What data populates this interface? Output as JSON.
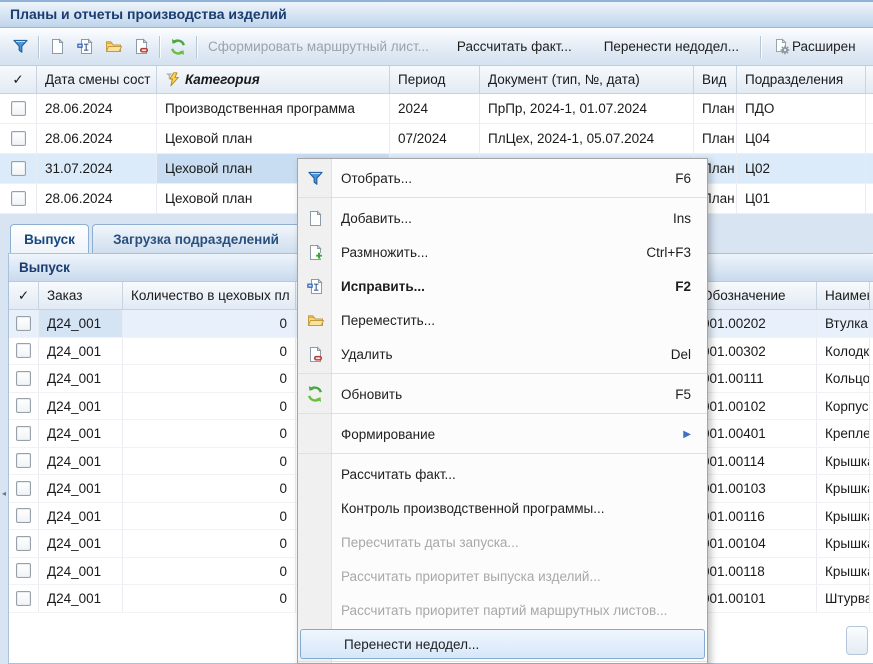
{
  "window": {
    "title": "Планы и отчеты производства изделий"
  },
  "toolbar": {
    "icon_buttons": [
      {
        "name": "filter-button",
        "icon": "filter-icon"
      },
      {
        "name": "add-button",
        "icon": "new-doc-icon"
      },
      {
        "name": "edit-button",
        "icon": "edit-doc-icon"
      },
      {
        "name": "move-button",
        "icon": "move-folder-icon"
      },
      {
        "name": "delete-button",
        "icon": "delete-doc-icon"
      },
      {
        "name": "refresh-button",
        "icon": "refresh-icon"
      }
    ],
    "buttons": {
      "form_route_sheet": "Сформировать маршрутный лист...",
      "calc_fact": "Рассчитать факт...",
      "carry_backlog": "Перенести недодел...",
      "advanced": "Расширен"
    }
  },
  "plans_table": {
    "header": {
      "check": "✓",
      "date": "Дата смены сост",
      "category": "Категория",
      "period": "Период",
      "document": "Документ (тип, №, дата)",
      "kind": "Вид",
      "division": "Подразделения"
    },
    "rows": [
      {
        "date": "28.06.2024",
        "category": "Производственная программа",
        "period": "2024",
        "document": "ПрПр, 2024-1, 01.07.2024",
        "kind": "План",
        "division": "ПДО"
      },
      {
        "date": "28.06.2024",
        "category": "Цеховой план",
        "period": "07/2024",
        "document": "ПлЦех, 2024-1, 05.07.2024",
        "kind": "План",
        "division": "Ц04"
      },
      {
        "date": "31.07.2024",
        "category": "Цеховой план",
        "period": "",
        "document": "",
        "kind": "План",
        "division": "Ц02",
        "selected": true
      },
      {
        "date": "28.06.2024",
        "category": "Цеховой план",
        "period": "",
        "document": "",
        "kind": "План",
        "division": "Ц01"
      }
    ]
  },
  "tabs": {
    "output": "Выпуск",
    "load": "Загрузка подразделений"
  },
  "output_panel": {
    "title": "Выпуск",
    "header": {
      "check": "✓",
      "order": "Заказ",
      "qty": "Количество в цеховых пл",
      "designation": "Обозначение",
      "name": "Наименование"
    },
    "rows": [
      {
        "order": "Д24_001",
        "qty": "0",
        "designation": "001.00202",
        "name": "Втулка",
        "selected": true
      },
      {
        "order": "Д24_001",
        "qty": "0",
        "designation": "001.00302",
        "name": "Колодк"
      },
      {
        "order": "Д24_001",
        "qty": "0",
        "designation": "001.00111",
        "name": "Кольцо"
      },
      {
        "order": "Д24_001",
        "qty": "0",
        "designation": "001.00102",
        "name": "Корпус"
      },
      {
        "order": "Д24_001",
        "qty": "0",
        "designation": "001.00401",
        "name": "Крепле"
      },
      {
        "order": "Д24_001",
        "qty": "0",
        "designation": "001.00114",
        "name": "Крышка"
      },
      {
        "order": "Д24_001",
        "qty": "0",
        "designation": "001.00103",
        "name": "Крышка"
      },
      {
        "order": "Д24_001",
        "qty": "0",
        "designation": "001.00116",
        "name": "Крышка"
      },
      {
        "order": "Д24_001",
        "qty": "0",
        "designation": "001.00104",
        "name": "Крышка"
      },
      {
        "order": "Д24_001",
        "qty": "0",
        "designation": "001.00118",
        "name": "Крышка"
      },
      {
        "order": "Д24_001",
        "qty": "0",
        "designation": "001.00101",
        "name": "Штурва"
      }
    ]
  },
  "context_menu": {
    "items": [
      {
        "label": "Отобрать...",
        "shortcut": "F6",
        "icon": "filter-icon",
        "name": "menu-item-filter"
      },
      {
        "separator": true
      },
      {
        "label": "Добавить...",
        "shortcut": "Ins",
        "icon": "new-doc-icon",
        "name": "menu-item-add"
      },
      {
        "label": "Размножить...",
        "shortcut": "Ctrl+F3",
        "icon": "copy-doc-icon",
        "name": "menu-item-duplicate"
      },
      {
        "label": "Исправить...",
        "shortcut": "F2",
        "icon": "edit-doc-icon",
        "name": "menu-item-edit",
        "bold": true
      },
      {
        "label": "Переместить...",
        "icon": "move-folder-icon",
        "name": "menu-item-move"
      },
      {
        "label": "Удалить",
        "shortcut": "Del",
        "icon": "delete-doc-icon",
        "name": "menu-item-delete"
      },
      {
        "separator": true
      },
      {
        "label": "Обновить",
        "shortcut": "F5",
        "icon": "refresh-icon",
        "name": "menu-item-refresh"
      },
      {
        "separator": true
      },
      {
        "label": "Формирование",
        "submenu": true,
        "name": "menu-item-formation"
      },
      {
        "separator": true
      },
      {
        "label": "Рассчитать факт...",
        "name": "menu-item-calc-fact"
      },
      {
        "label": "Контроль производственной программы...",
        "name": "menu-item-control-program"
      },
      {
        "label": "Пересчитать даты запуска...",
        "disabled": true,
        "name": "menu-item-recalc-launch-dates"
      },
      {
        "label": "Рассчитать приоритет выпуска изделий...",
        "disabled": true,
        "name": "menu-item-product-priority"
      },
      {
        "label": "Рассчитать приоритет партий маршрутных листов...",
        "disabled": true,
        "name": "menu-item-batch-priority"
      },
      {
        "label": "Перенести недодел...",
        "highlighted": true,
        "name": "menu-item-carry-backlog"
      },
      {
        "separator": true
      }
    ]
  },
  "colors": {
    "titlebar_text": "#1a3c70",
    "selected_row": "#dcebf9",
    "selected_cell": "#c9ddf2",
    "menu_highlight_border": "#86a9d2",
    "accent_blue": "#2f6bb0",
    "disabled_text": "#9aa2ac"
  }
}
